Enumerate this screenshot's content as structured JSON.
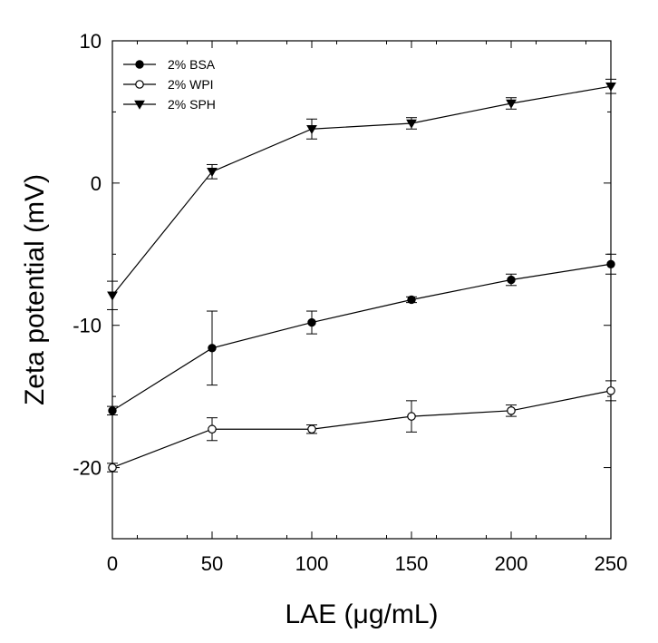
{
  "chart_data": {
    "type": "line",
    "xlabel": "LAE (μg/mL)",
    "ylabel": "Zeta potential (mV)",
    "xlim": [
      0,
      250
    ],
    "ylim": [
      -25,
      10
    ],
    "xticks": [
      0,
      50,
      100,
      150,
      200,
      250
    ],
    "yticks": [
      10,
      0,
      -10,
      -20
    ],
    "x": [
      0,
      50,
      100,
      150,
      200,
      250
    ],
    "legend_position": "top-left",
    "grid": false,
    "series": [
      {
        "name": "2% BSA",
        "marker": "filled-circle",
        "values": [
          -16.0,
          -11.6,
          -9.8,
          -8.2,
          -6.8,
          -5.7
        ],
        "errors": [
          0.3,
          2.6,
          0.8,
          0.2,
          0.4,
          0.7
        ]
      },
      {
        "name": "2% WPI",
        "marker": "open-circle",
        "values": [
          -20.0,
          -17.3,
          -17.3,
          -16.4,
          -16.0,
          -14.6
        ],
        "errors": [
          0.3,
          0.8,
          0.3,
          1.1,
          0.4,
          0.7
        ]
      },
      {
        "name": "2% SPH",
        "marker": "filled-triangle-down",
        "values": [
          -7.9,
          0.8,
          3.8,
          4.2,
          5.6,
          6.8
        ],
        "errors": [
          1.0,
          0.5,
          0.7,
          0.4,
          0.4,
          0.5
        ]
      }
    ]
  }
}
